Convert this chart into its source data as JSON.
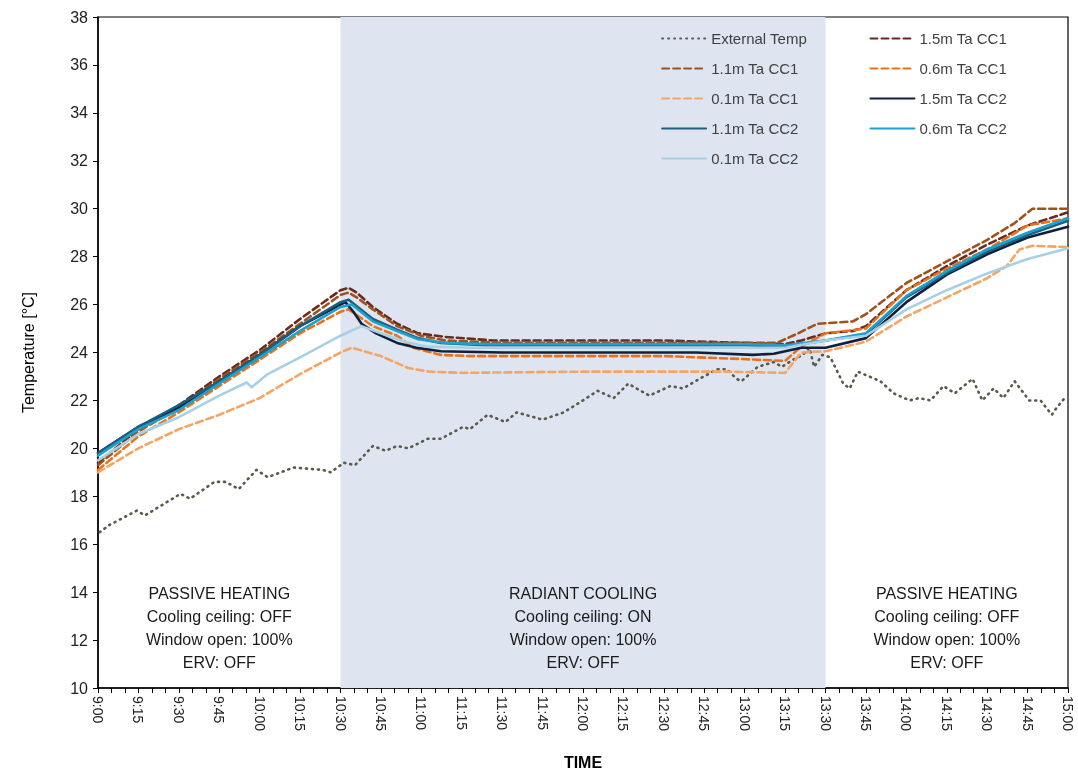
{
  "chart_data": {
    "type": "line",
    "xlabel": "TIME",
    "ylabel": "Temperature [°C]",
    "xlim": [
      9,
      15
    ],
    "ylim": [
      10,
      38
    ],
    "xticks": [
      {
        "value": 9,
        "label": "9:00"
      },
      {
        "value": 9.0833,
        "label": null
      },
      {
        "value": 9.1667,
        "label": null
      },
      {
        "value": 9.25,
        "label": "9:15"
      },
      {
        "value": 9.3333,
        "label": null
      },
      {
        "value": 9.4167,
        "label": null
      },
      {
        "value": 9.5,
        "label": "9:30"
      },
      {
        "value": 9.5833,
        "label": null
      },
      {
        "value": 9.6667,
        "label": null
      },
      {
        "value": 9.75,
        "label": "9:45"
      },
      {
        "value": 9.8333,
        "label": null
      },
      {
        "value": 9.9167,
        "label": null
      },
      {
        "value": 10,
        "label": "10:00"
      },
      {
        "value": 10.0833,
        "label": null
      },
      {
        "value": 10.1667,
        "label": null
      },
      {
        "value": 10.25,
        "label": "10:15"
      },
      {
        "value": 10.3333,
        "label": null
      },
      {
        "value": 10.4167,
        "label": null
      },
      {
        "value": 10.5,
        "label": "10:30"
      },
      {
        "value": 10.5833,
        "label": null
      },
      {
        "value": 10.6667,
        "label": null
      },
      {
        "value": 10.75,
        "label": "10:45"
      },
      {
        "value": 10.8333,
        "label": null
      },
      {
        "value": 10.9167,
        "label": null
      },
      {
        "value": 11,
        "label": "11:00"
      },
      {
        "value": 11.0833,
        "label": null
      },
      {
        "value": 11.1667,
        "label": null
      },
      {
        "value": 11.25,
        "label": "11:15"
      },
      {
        "value": 11.3333,
        "label": null
      },
      {
        "value": 11.4167,
        "label": null
      },
      {
        "value": 11.5,
        "label": "11:30"
      },
      {
        "value": 11.5833,
        "label": null
      },
      {
        "value": 11.6667,
        "label": null
      },
      {
        "value": 11.75,
        "label": "11:45"
      },
      {
        "value": 11.8333,
        "label": null
      },
      {
        "value": 11.9167,
        "label": null
      },
      {
        "value": 12,
        "label": "12:00"
      },
      {
        "value": 12.0833,
        "label": null
      },
      {
        "value": 12.1667,
        "label": null
      },
      {
        "value": 12.25,
        "label": "12:15"
      },
      {
        "value": 12.3333,
        "label": null
      },
      {
        "value": 12.4167,
        "label": null
      },
      {
        "value": 12.5,
        "label": "12:30"
      },
      {
        "value": 12.5833,
        "label": null
      },
      {
        "value": 12.6667,
        "label": null
      },
      {
        "value": 12.75,
        "label": "12:45"
      },
      {
        "value": 12.8333,
        "label": null
      },
      {
        "value": 12.9167,
        "label": null
      },
      {
        "value": 13,
        "label": "13:00"
      },
      {
        "value": 13.0833,
        "label": null
      },
      {
        "value": 13.1667,
        "label": null
      },
      {
        "value": 13.25,
        "label": "13:15"
      },
      {
        "value": 13.3333,
        "label": null
      },
      {
        "value": 13.4167,
        "label": null
      },
      {
        "value": 13.5,
        "label": "13:30"
      },
      {
        "value": 13.5833,
        "label": null
      },
      {
        "value": 13.6667,
        "label": null
      },
      {
        "value": 13.75,
        "label": "13:45"
      },
      {
        "value": 13.8333,
        "label": null
      },
      {
        "value": 13.9167,
        "label": null
      },
      {
        "value": 14,
        "label": "14:00"
      },
      {
        "value": 14.0833,
        "label": null
      },
      {
        "value": 14.1667,
        "label": null
      },
      {
        "value": 14.25,
        "label": "14:15"
      },
      {
        "value": 14.3333,
        "label": null
      },
      {
        "value": 14.4167,
        "label": null
      },
      {
        "value": 14.5,
        "label": "14:30"
      },
      {
        "value": 14.5833,
        "label": null
      },
      {
        "value": 14.6667,
        "label": null
      },
      {
        "value": 14.75,
        "label": "14:45"
      },
      {
        "value": 14.8333,
        "label": null
      },
      {
        "value": 14.9167,
        "label": null
      },
      {
        "value": 15,
        "label": "15:00"
      }
    ],
    "yticks": [
      10,
      12,
      14,
      16,
      18,
      20,
      22,
      24,
      26,
      28,
      30,
      32,
      34,
      36,
      38
    ],
    "legend": "top right",
    "bands": [
      {
        "axis": "x",
        "from": 10.5,
        "to": 13.5,
        "color": "#dee5f1"
      }
    ],
    "annotations": [
      "PASSIVE HEATING\nCooling ceiling: OFF\nWindow open: 100%\nERV: OFF",
      "RADIANT COOLING\nCooling ceiling: ON\nWindow open: 100%\nERV: OFF",
      "PASSIVE HEATING\nCooling ceiling: OFF\nWindow open: 100%\nERV: OFF"
    ],
    "series": [
      {
        "name": "External Temp",
        "color": "#5a5a48",
        "line_style": "dotted",
        "x": [
          9.01,
          9.07,
          9.24,
          9.29,
          9.51,
          9.57,
          9.72,
          9.79,
          9.87,
          9.98,
          10.05,
          10.21,
          10.39,
          10.44,
          10.52,
          10.59,
          10.7,
          10.78,
          10.85,
          10.92,
          11.04,
          11.12,
          11.26,
          11.3,
          11.41,
          11.52,
          11.59,
          11.75,
          11.88,
          12,
          12.09,
          12.19,
          12.28,
          12.41,
          12.54,
          12.62,
          12.72,
          12.83,
          12.89,
          12.95,
          12.98,
          13.08,
          13.18,
          13.23,
          13.3,
          13.36,
          13.4,
          13.43,
          13.48,
          13.53,
          13.61,
          13.65,
          13.7,
          13.84,
          13.92,
          14.02,
          14.08,
          14.15,
          14.23,
          14.3,
          14.41,
          14.47,
          14.54,
          14.6,
          14.67,
          14.76,
          14.83,
          14.9,
          14.93,
          14.98
        ],
        "values": [
          16.5,
          16.8,
          17.4,
          17.2,
          18.1,
          17.9,
          18.6,
          18.6,
          18.3,
          19.1,
          18.8,
          19.2,
          19.1,
          19,
          19.4,
          19.3,
          20.1,
          19.9,
          20.1,
          20,
          20.4,
          20.4,
          20.9,
          20.8,
          21.4,
          21.1,
          21.5,
          21.2,
          21.5,
          22,
          22.4,
          22.1,
          22.7,
          22.2,
          22.6,
          22.5,
          22.9,
          23.3,
          23.3,
          22.9,
          22.8,
          23.4,
          23.6,
          23.4,
          23.7,
          23.9,
          24.2,
          23.4,
          23.9,
          23.8,
          22.7,
          22.5,
          23.2,
          22.8,
          22.3,
          22,
          22.1,
          22,
          22.6,
          22.3,
          22.9,
          22,
          22.5,
          22.1,
          22.8,
          22,
          22,
          21.4,
          21.7,
          22.1
        ]
      },
      {
        "name": "1.5m Ta CC1",
        "color": "#6b2a1e",
        "line_style": "dashed",
        "x": [
          9,
          9.25,
          9.5,
          9.75,
          10,
          10.25,
          10.5,
          10.55,
          10.6,
          10.7,
          10.85,
          10.98,
          11.15,
          11.45,
          12.5,
          13,
          13.25,
          13.35,
          13.5,
          13.67,
          13.75,
          14,
          14.25,
          14.5,
          14.75,
          15
        ],
        "values": [
          19.4,
          20.8,
          21.8,
          23,
          24.1,
          25.4,
          26.6,
          26.7,
          26.5,
          25.9,
          25.2,
          24.8,
          24.65,
          24.5,
          24.5,
          24.4,
          24.35,
          24.5,
          24.8,
          24.9,
          25.1,
          26.6,
          27.6,
          28.5,
          29.3,
          29.85
        ]
      },
      {
        "name": "1.1m Ta CC1",
        "color": "#a0521d",
        "line_style": "dashed",
        "x": [
          9,
          9.25,
          9.5,
          9.75,
          10,
          10.25,
          10.5,
          10.55,
          10.6,
          10.7,
          10.85,
          11,
          11.15,
          11.5,
          13.2,
          13.33,
          13.45,
          13.67,
          13.75,
          14,
          14.25,
          14.5,
          14.67,
          14.78,
          15
        ],
        "values": [
          19.3,
          20.7,
          21.7,
          22.9,
          24,
          25.2,
          26.4,
          26.5,
          26.3,
          25.8,
          25.1,
          24.7,
          24.5,
          24.4,
          24.4,
          24.8,
          25.2,
          25.3,
          25.6,
          26.9,
          27.8,
          28.7,
          29.4,
          30,
          30
        ]
      },
      {
        "name": "0.6m Ta CC1",
        "color": "#e9731c",
        "line_style": "dashed",
        "x": [
          9,
          9.25,
          9.5,
          9.75,
          10,
          10.25,
          10.5,
          10.55,
          10.7,
          10.85,
          10.95,
          11.12,
          11.3,
          12.5,
          12.9,
          13.25,
          13.35,
          13.5,
          13.75,
          14,
          14.25,
          14.5,
          14.75,
          15
        ],
        "values": [
          19.1,
          20.5,
          21.5,
          22.6,
          23.7,
          24.8,
          25.7,
          25.8,
          25.1,
          24.7,
          24.2,
          23.9,
          23.85,
          23.85,
          23.75,
          23.65,
          24.25,
          24.8,
          25,
          26.6,
          27.5,
          28.3,
          29.3,
          29.6
        ]
      },
      {
        "name": "0.1m Ta CC1",
        "color": "#f4a563",
        "line_style": "dashed",
        "x": [
          9,
          9.25,
          9.5,
          9.75,
          10,
          10.25,
          10.5,
          10.57,
          10.75,
          10.92,
          11.05,
          11.25,
          12,
          12.9,
          13.25,
          13.35,
          13.5,
          13.75,
          14,
          14.25,
          14.5,
          14.62,
          14.7,
          14.78,
          15
        ],
        "values": [
          19,
          20,
          20.8,
          21.4,
          22.1,
          23.1,
          24,
          24.2,
          23.85,
          23.35,
          23.2,
          23.15,
          23.2,
          23.2,
          23.15,
          24,
          24.05,
          24.45,
          25.5,
          26.3,
          27.1,
          27.6,
          28.3,
          28.45,
          28.4
        ]
      },
      {
        "name": "1.5m Ta CC2",
        "color": "#0e203d",
        "line_style": "solid",
        "x": [
          9,
          9.25,
          9.5,
          9.75,
          10,
          10.25,
          10.5,
          10.53,
          10.58,
          10.63,
          10.72,
          10.85,
          10.97,
          11.12,
          11.5,
          12.7,
          13.05,
          13.18,
          13.35,
          13.5,
          13.75,
          14,
          14.25,
          14.5,
          14.75,
          15
        ],
        "values": [
          19.8,
          20.9,
          21.7,
          22.8,
          23.9,
          25.1,
          26,
          26.1,
          25.7,
          25.2,
          24.8,
          24.4,
          24.2,
          24.05,
          24,
          24,
          23.9,
          23.95,
          24.2,
          24.2,
          24.6,
          26.1,
          27.25,
          28.1,
          28.8,
          29.25
        ]
      },
      {
        "name": "1.1m Ta CC2",
        "color": "#1c5e80",
        "line_style": "solid",
        "x": [
          9,
          9.25,
          9.5,
          9.75,
          10,
          10.25,
          10.5,
          10.55,
          10.7,
          10.85,
          10.98,
          11.12,
          11.4,
          13,
          13.25,
          13.5,
          13.75,
          14,
          14.25,
          14.5,
          14.75,
          15
        ],
        "values": [
          19.8,
          20.9,
          21.8,
          22.8,
          23.9,
          25.1,
          26.1,
          26.2,
          25.4,
          24.95,
          24.6,
          24.4,
          24.3,
          24.3,
          24.25,
          24.5,
          24.75,
          26.3,
          27.3,
          28.2,
          28.9,
          29.5
        ]
      },
      {
        "name": "0.6m Ta CC2",
        "color": "#1f9fcb",
        "line_style": "solid",
        "x": [
          9,
          9.25,
          9.5,
          9.75,
          10,
          10.25,
          10.5,
          10.57,
          10.7,
          10.85,
          10.98,
          11.15,
          11.4,
          13,
          13.25,
          13.5,
          13.75,
          14,
          14.25,
          14.5,
          14.75,
          15
        ],
        "values": [
          19.7,
          20.8,
          21.6,
          22.7,
          23.8,
          24.9,
          25.9,
          26,
          25.3,
          24.9,
          24.55,
          24.4,
          24.35,
          24.35,
          24.3,
          24.5,
          24.8,
          26.35,
          27.4,
          28.3,
          29,
          29.6
        ]
      },
      {
        "name": "0.1m Ta CC2",
        "color": "#a8d0e5",
        "line_style": "solid",
        "x": [
          9,
          9.25,
          9.5,
          9.75,
          9.92,
          9.95,
          10.05,
          10.25,
          10.5,
          10.63,
          10.75,
          10.9,
          11.03,
          11.3,
          13,
          13.25,
          13.5,
          13.75,
          14,
          14.25,
          14.5,
          14.75,
          15
        ],
        "values": [
          19.5,
          20.6,
          21.3,
          22.2,
          22.75,
          22.55,
          23.1,
          23.8,
          24.7,
          25.1,
          24.8,
          24.45,
          24.25,
          24.2,
          24.2,
          24.2,
          24.5,
          24.7,
          25.8,
          26.6,
          27.3,
          27.9,
          28.35
        ]
      }
    ]
  }
}
